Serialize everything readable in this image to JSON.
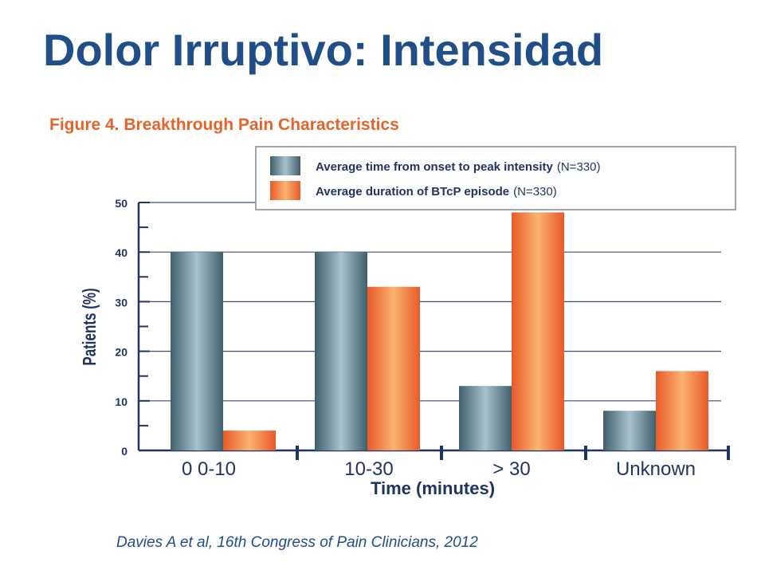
{
  "slide": {
    "title": "Dolor Irruptivo: Intensidad",
    "citation": "Davies A et al,  16th Congress of Pain Clinicians, 2012"
  },
  "chart_data": {
    "type": "bar",
    "title": "Figure 4. Breakthrough Pain Characteristics",
    "xlabel": "Time (minutes)",
    "ylabel": "Patients (%)",
    "ylim": [
      0,
      50
    ],
    "yticks": [
      0,
      10,
      20,
      30,
      40,
      50
    ],
    "grid": true,
    "legend_position": "top-right",
    "categories": [
      "0  0-10",
      "10-30",
      "> 30",
      "Unknown"
    ],
    "series": [
      {
        "name_main": "Average time from onset to peak intensity",
        "name_suffix": "(N=330)",
        "values": [
          40,
          40,
          13,
          8
        ],
        "color": "#5f7f8c"
      },
      {
        "name_main": "Average duration of BTcP episode",
        "name_suffix": "(N=330)",
        "values": [
          4,
          33,
          48,
          16
        ],
        "color": "#f07a3a"
      }
    ]
  }
}
